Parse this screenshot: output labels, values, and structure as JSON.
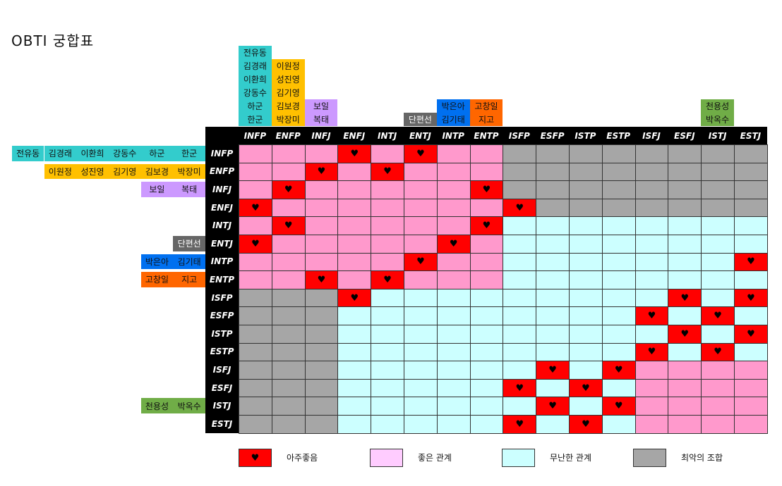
{
  "title": "OBTI 궁합표",
  "types": [
    "INFP",
    "ENFP",
    "INFJ",
    "ENFJ",
    "INTJ",
    "ENTJ",
    "INTP",
    "ENTP",
    "ISFP",
    "ESFP",
    "ISTP",
    "ESTP",
    "ISFJ",
    "ESFJ",
    "ISTJ",
    "ESTJ"
  ],
  "colors": {
    "best": "#ff0000",
    "good": "#ff99cc",
    "neutral": "#ccffff",
    "worst": "#a6a6a6",
    "legend_good": "#ffccff",
    "header_bg": "#000000"
  },
  "groups": [
    {
      "type": "INFP",
      "color": "#33cccc",
      "names": [
        "전유동",
        "김경래",
        "이환희",
        "강동수",
        "하군",
        "한군"
      ]
    },
    {
      "type": "ENFP",
      "color": "#ffc000",
      "names": [
        "이원정",
        "성진영",
        "김기영",
        "김보경",
        "박장미"
      ]
    },
    {
      "type": "INFJ",
      "color": "#cc99ff",
      "names": [
        "보일",
        "복태"
      ]
    },
    {
      "type": "ENTJ",
      "color": "#666666",
      "text_color": "#ffffff",
      "names": [
        "단편선"
      ]
    },
    {
      "type": "INTP",
      "color": "#0070f0",
      "names": [
        "박은아",
        "김기태"
      ]
    },
    {
      "type": "ENTP",
      "color": "#ff6600",
      "names": [
        "고창일",
        "지고"
      ]
    },
    {
      "type": "ISTJ",
      "color": "#70ad47",
      "names": [
        "천용성",
        "박옥수"
      ]
    }
  ],
  "chart_data": {
    "type": "table",
    "title": "OBTI 궁합표",
    "rows": [
      "INFP",
      "ENFP",
      "INFJ",
      "ENFJ",
      "INTJ",
      "ENTJ",
      "INTP",
      "ENTP",
      "ISFP",
      "ESFP",
      "ISTP",
      "ESTP",
      "ISFJ",
      "ESFJ",
      "ISTJ",
      "ESTJ"
    ],
    "columns": [
      "INFP",
      "ENFP",
      "INFJ",
      "ENFJ",
      "INTJ",
      "ENTJ",
      "INTP",
      "ENTP",
      "ISFP",
      "ESFP",
      "ISTP",
      "ESTP",
      "ISFJ",
      "ESFJ",
      "ISTJ",
      "ESTJ"
    ],
    "values": [
      [
        "good",
        "good",
        "good",
        "best",
        "good",
        "best",
        "good",
        "good",
        "worst",
        "worst",
        "worst",
        "worst",
        "worst",
        "worst",
        "worst",
        "worst"
      ],
      [
        "good",
        "good",
        "best",
        "good",
        "best",
        "good",
        "good",
        "good",
        "worst",
        "worst",
        "worst",
        "worst",
        "worst",
        "worst",
        "worst",
        "worst"
      ],
      [
        "good",
        "best",
        "good",
        "good",
        "good",
        "good",
        "good",
        "best",
        "worst",
        "worst",
        "worst",
        "worst",
        "worst",
        "worst",
        "worst",
        "worst"
      ],
      [
        "best",
        "good",
        "good",
        "good",
        "good",
        "good",
        "good",
        "good",
        "best",
        "worst",
        "worst",
        "worst",
        "worst",
        "worst",
        "worst",
        "worst"
      ],
      [
        "good",
        "best",
        "good",
        "good",
        "good",
        "good",
        "good",
        "best",
        "neutral",
        "neutral",
        "neutral",
        "neutral",
        "neutral",
        "neutral",
        "neutral",
        "neutral"
      ],
      [
        "best",
        "good",
        "good",
        "good",
        "good",
        "good",
        "best",
        "good",
        "neutral",
        "neutral",
        "neutral",
        "neutral",
        "neutral",
        "neutral",
        "neutral",
        "neutral"
      ],
      [
        "good",
        "good",
        "good",
        "good",
        "good",
        "best",
        "good",
        "good",
        "neutral",
        "neutral",
        "neutral",
        "neutral",
        "neutral",
        "neutral",
        "neutral",
        "best"
      ],
      [
        "good",
        "good",
        "best",
        "good",
        "best",
        "good",
        "good",
        "good",
        "neutral",
        "neutral",
        "neutral",
        "neutral",
        "neutral",
        "neutral",
        "neutral",
        "neutral"
      ],
      [
        "worst",
        "worst",
        "worst",
        "best",
        "neutral",
        "neutral",
        "neutral",
        "neutral",
        "neutral",
        "neutral",
        "neutral",
        "neutral",
        "neutral",
        "best",
        "neutral",
        "best"
      ],
      [
        "worst",
        "worst",
        "worst",
        "neutral",
        "neutral",
        "neutral",
        "neutral",
        "neutral",
        "neutral",
        "neutral",
        "neutral",
        "neutral",
        "best",
        "neutral",
        "best",
        "neutral"
      ],
      [
        "worst",
        "worst",
        "worst",
        "neutral",
        "neutral",
        "neutral",
        "neutral",
        "neutral",
        "neutral",
        "neutral",
        "neutral",
        "neutral",
        "neutral",
        "best",
        "neutral",
        "best"
      ],
      [
        "worst",
        "worst",
        "worst",
        "neutral",
        "neutral",
        "neutral",
        "neutral",
        "neutral",
        "neutral",
        "neutral",
        "neutral",
        "neutral",
        "best",
        "neutral",
        "best",
        "neutral"
      ],
      [
        "worst",
        "worst",
        "worst",
        "neutral",
        "neutral",
        "neutral",
        "neutral",
        "neutral",
        "neutral",
        "best",
        "neutral",
        "best",
        "good",
        "good",
        "good",
        "good"
      ],
      [
        "worst",
        "worst",
        "worst",
        "neutral",
        "neutral",
        "neutral",
        "neutral",
        "neutral",
        "best",
        "neutral",
        "best",
        "neutral",
        "good",
        "good",
        "good",
        "good"
      ],
      [
        "worst",
        "worst",
        "worst",
        "neutral",
        "neutral",
        "neutral",
        "neutral",
        "neutral",
        "neutral",
        "best",
        "neutral",
        "best",
        "good",
        "good",
        "good",
        "good"
      ],
      [
        "worst",
        "worst",
        "worst",
        "neutral",
        "neutral",
        "neutral",
        "neutral",
        "neutral",
        "best",
        "neutral",
        "best",
        "neutral",
        "good",
        "good",
        "good",
        "good"
      ]
    ],
    "legend": [
      {
        "key": "best",
        "label": "아주좋음",
        "color": "#ff0000",
        "marker": "♥"
      },
      {
        "key": "good",
        "label": "좋은 관계",
        "color": "#ffccff"
      },
      {
        "key": "neutral",
        "label": "무난한 관계",
        "color": "#ccffff"
      },
      {
        "key": "worst",
        "label": "최악의 조합",
        "color": "#a6a6a6"
      }
    ],
    "legend_position": "bottom"
  }
}
